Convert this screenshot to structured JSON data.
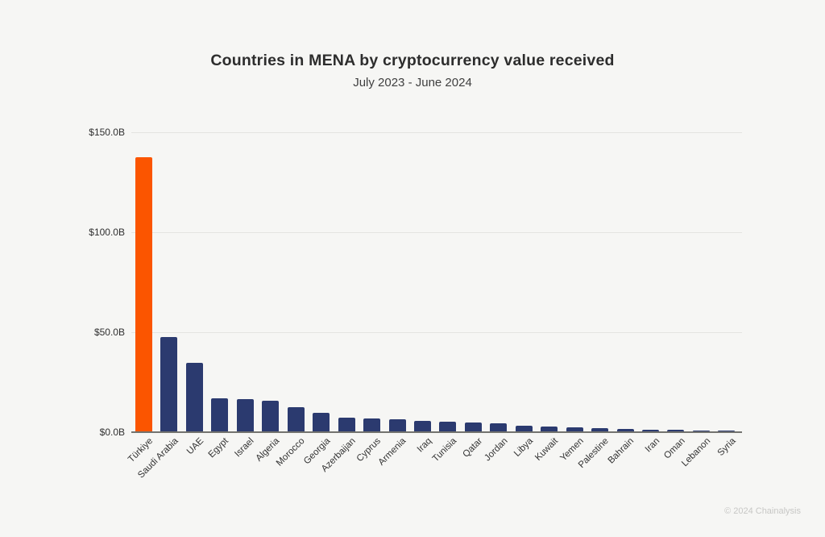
{
  "header": {
    "title": "Countries in MENA by cryptocurrency value received",
    "subtitle": "July 2023 - June 2024"
  },
  "footer": {
    "copyright": "© 2024 Chainalysis"
  },
  "colors": {
    "highlight_bar": "#FB5500",
    "bar": "#2B3A6F",
    "gridline": "#E4E4E1",
    "axis_line": "#73736F",
    "background": "#F6F6F4",
    "title_text": "#2D2D2D",
    "tick_text": "#333333",
    "footer_text": "#C7C7C5"
  },
  "chart_data": {
    "type": "bar",
    "title": "Countries in MENA by cryptocurrency value received",
    "subtitle": "July 2023 - June 2024",
    "categories": [
      "Türkiye",
      "Saudi Arabia",
      "UAE",
      "Egypt",
      "Israel",
      "Algeria",
      "Morocco",
      "Georgia",
      "Azerbaijan",
      "Cyprus",
      "Armenia",
      "Iraq",
      "Tunisia",
      "Qatar",
      "Jordan",
      "Libya",
      "Kuwait",
      "Yemen",
      "Palestine",
      "Bahrain",
      "Iran",
      "Oman",
      "Lebanon",
      "Syria"
    ],
    "values": [
      137,
      47,
      34,
      16.5,
      16,
      15,
      12,
      9,
      6.5,
      6.2,
      6,
      5,
      4.5,
      4.2,
      4,
      2.6,
      2.1,
      1.9,
      1.4,
      0.9,
      0.6,
      0.5,
      0.2,
      0.1
    ],
    "values_unit": "billions USD",
    "highlight_category": "Türkiye",
    "xlabel": "",
    "ylabel": "",
    "ylim": [
      0,
      150
    ],
    "yticks": [
      0,
      50,
      100,
      150
    ],
    "ytick_labels": [
      "$0.0B",
      "$50.0B",
      "$100.0B",
      "$150.0B"
    ],
    "grid": "horizontal",
    "legend": "none"
  }
}
